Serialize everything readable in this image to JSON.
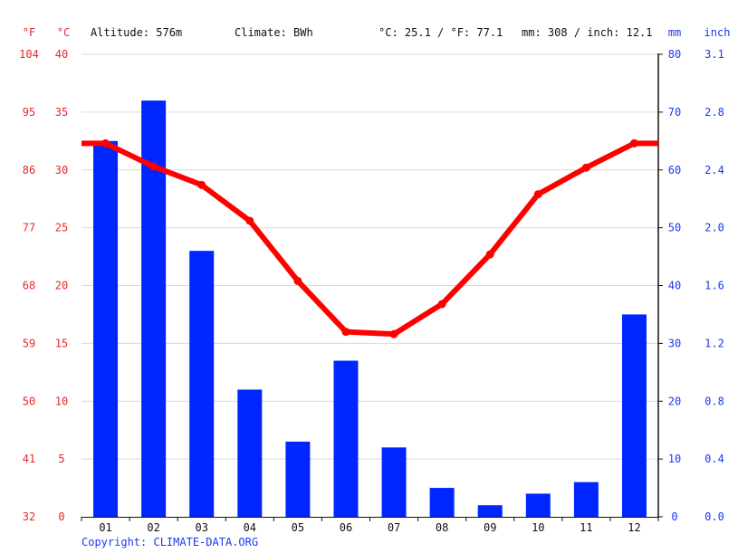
{
  "header": {
    "unit_f": "°F",
    "unit_c": "°C",
    "altitude": "Altitude: 576m",
    "climate": "Climate: BWh",
    "temp_avg": "°C: 25.1 / °F: 77.1",
    "precip_total": "mm: 308 / inch: 12.1",
    "unit_mm": "mm",
    "unit_inch": "inch"
  },
  "footer": {
    "copyright": "Copyright: CLIMATE-DATA.ORG"
  },
  "colors": {
    "temperature": "#ff0000",
    "precipitation": "#0026ff",
    "axis_left": "#e8272b",
    "axis_right": "#1b39ee",
    "grid": "#d9d9d9"
  },
  "chart_data": {
    "type": "bar+line",
    "categories": [
      "01",
      "02",
      "03",
      "04",
      "05",
      "06",
      "07",
      "08",
      "09",
      "10",
      "11",
      "12"
    ],
    "series": [
      {
        "kind": "bar",
        "unit": "mm",
        "axis": "right",
        "values": [
          65,
          72,
          46,
          22,
          13,
          27,
          12,
          5,
          2,
          4,
          6,
          35
        ]
      },
      {
        "kind": "line",
        "unit": "°C",
        "axis": "left",
        "values": [
          32.3,
          30.3,
          28.7,
          25.6,
          20.4,
          16.0,
          15.8,
          18.4,
          22.7,
          27.9,
          30.2,
          32.3
        ]
      }
    ],
    "left_axis_c": {
      "ylim": [
        0,
        40
      ],
      "ticks": [
        "0",
        "5",
        "10",
        "15",
        "20",
        "25",
        "30",
        "35",
        "40"
      ]
    },
    "left_axis_f": {
      "ticks": [
        "32",
        "41",
        "50",
        "59",
        "68",
        "77",
        "86",
        "95",
        "104"
      ]
    },
    "right_axis_mm": {
      "ylim": [
        0,
        80
      ],
      "ticks": [
        "0",
        "10",
        "20",
        "30",
        "40",
        "50",
        "60",
        "70",
        "80"
      ]
    },
    "right_axis_inch": {
      "ticks": [
        "0.0",
        "0.4",
        "0.8",
        "1.2",
        "1.6",
        "2.0",
        "2.4",
        "2.8",
        "3.1"
      ]
    },
    "grid": true
  }
}
